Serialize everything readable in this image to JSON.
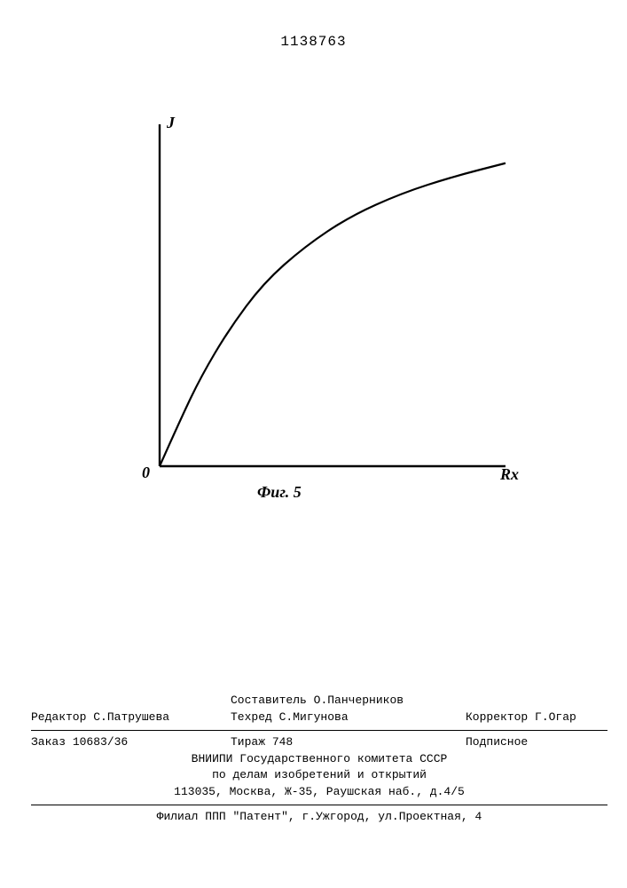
{
  "document_number": "1138763",
  "chart": {
    "type": "line",
    "y_axis_label": "J",
    "x_axis_label": "Rx",
    "origin_label": "0",
    "caption": "Фиг. 5",
    "line_color": "#000000",
    "line_width": 2.2,
    "axis_color": "#000000",
    "axis_width": 2.4,
    "background_color": "#ffffff",
    "xlim": [
      0,
      100
    ],
    "ylim": [
      0,
      100
    ],
    "curve_points": [
      [
        0,
        0
      ],
      [
        6,
        14
      ],
      [
        12,
        27
      ],
      [
        20,
        41
      ],
      [
        30,
        55
      ],
      [
        42,
        66
      ],
      [
        55,
        75
      ],
      [
        70,
        82
      ],
      [
        85,
        87
      ],
      [
        100,
        91
      ]
    ],
    "label_fontsize_pt": 14,
    "caption_fontsize_pt": 14
  },
  "imprint": {
    "compiler_label": "Составитель",
    "compiler_name": "О.Панчерников",
    "editor_label": "Редактор",
    "editor_name": "С.Патрушева",
    "techred_label": "Техред",
    "techred_name": "С.Мигунова",
    "corrector_label": "Корректор",
    "corrector_name": "Г.Огар",
    "order_label": "Заказ",
    "order_number": "10683/36",
    "circulation_label": "Тираж",
    "circulation_number": "748",
    "subscription_label": "Подписное",
    "org_line1": "ВНИИПИ Государственного комитета СССР",
    "org_line2": "по делам изобретений и открытий",
    "org_line3": "113035, Москва, Ж-35, Раушская наб., д.4/5",
    "branch_line": "Филиал ППП \"Патент\", г.Ужгород, ул.Проектная, 4"
  }
}
